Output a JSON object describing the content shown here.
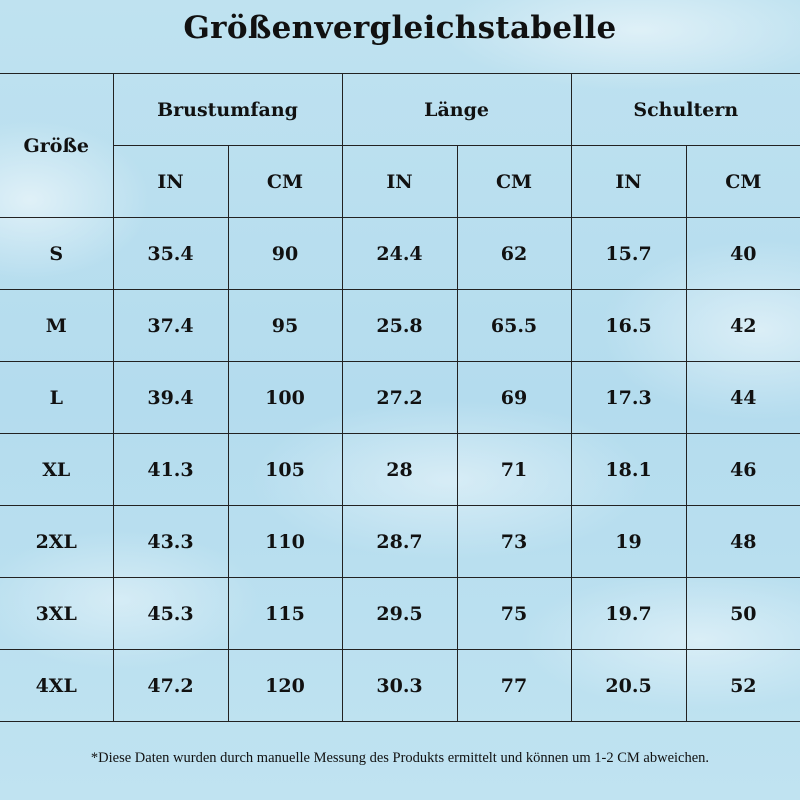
{
  "title": "Größenvergleichstabelle",
  "headers": {
    "size": "Größe",
    "groups": [
      "Brustumfang",
      "Länge",
      "Schultern"
    ],
    "units": [
      "IN",
      "CM",
      "IN",
      "CM",
      "IN",
      "CM"
    ]
  },
  "rows": [
    [
      "S",
      "35.4",
      "90",
      "24.4",
      "62",
      "15.7",
      "40"
    ],
    [
      "M",
      "37.4",
      "95",
      "25.8",
      "65.5",
      "16.5",
      "42"
    ],
    [
      "L",
      "39.4",
      "100",
      "27.2",
      "69",
      "17.3",
      "44"
    ],
    [
      "XL",
      "41.3",
      "105",
      "28",
      "71",
      "18.1",
      "46"
    ],
    [
      "2XL",
      "43.3",
      "110",
      "28.7",
      "73",
      "19",
      "48"
    ],
    [
      "3XL",
      "45.3",
      "115",
      "29.5",
      "75",
      "19.7",
      "50"
    ],
    [
      "4XL",
      "47.2",
      "120",
      "30.3",
      "77",
      "20.5",
      "52"
    ]
  ],
  "note": "*Diese Daten wurden durch manuelle Messung des Produkts ermittelt und können um 1-2 CM abweichen."
}
